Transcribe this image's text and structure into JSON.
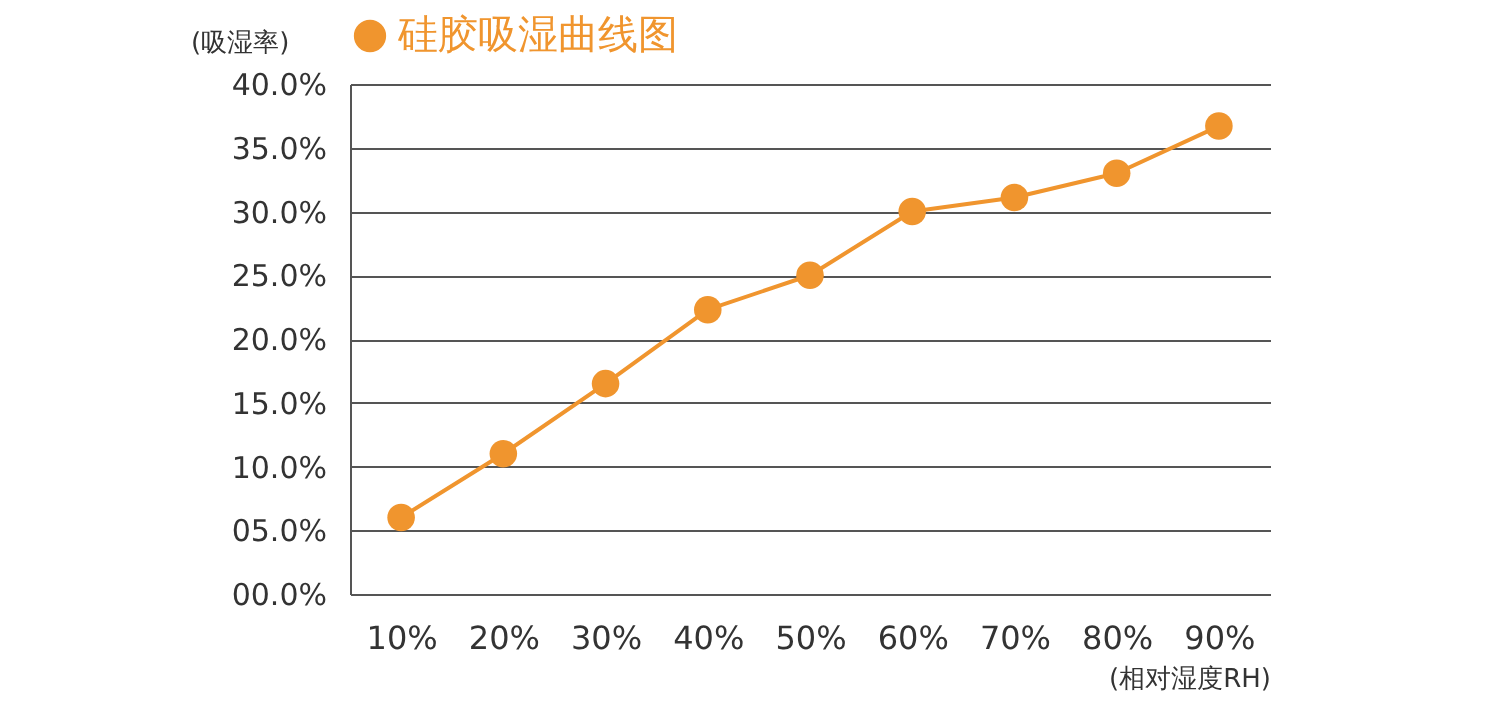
{
  "chart_data": {
    "type": "line",
    "xlabel": "(相对湿度RH)",
    "ylabel": "(吸湿率)",
    "categories": [
      "10%",
      "20%",
      "30%",
      "40%",
      "50%",
      "60%",
      "70%",
      "80%",
      "90%"
    ],
    "series": [
      {
        "name": "硅胶吸湿曲线图",
        "color": "#f0952e",
        "values": [
          6,
          11,
          16.5,
          22.3,
          25,
          30,
          31.1,
          33,
          36.7
        ]
      }
    ],
    "ylim": [
      0,
      40
    ],
    "yticks": [
      {
        "value": 0,
        "label": "00.0%"
      },
      {
        "value": 5,
        "label": "05.0%"
      },
      {
        "value": 10,
        "label": "10.0%"
      },
      {
        "value": 15,
        "label": "15.0%"
      },
      {
        "value": 20,
        "label": "20.0%"
      },
      {
        "value": 25,
        "label": "25.0%"
      },
      {
        "value": 30,
        "label": "30.0%"
      },
      {
        "value": 35,
        "label": "35.0%"
      },
      {
        "value": 40,
        "label": "40.0%"
      }
    ],
    "grid": "y",
    "legend": "top",
    "marker": "circle",
    "line_style": "solid"
  }
}
